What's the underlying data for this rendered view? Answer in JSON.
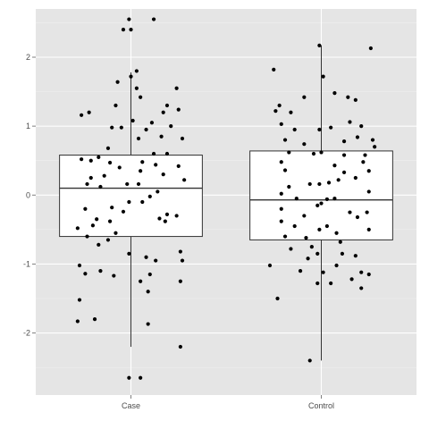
{
  "chart_data": {
    "type": "box",
    "categories": [
      "Case",
      "Control"
    ],
    "y_ticks": [
      -2,
      -1,
      0,
      1,
      2
    ],
    "y_tick_labels": [
      "-2",
      "-1",
      "0",
      "1",
      "2"
    ],
    "ylim": [
      -2.9,
      2.7
    ],
    "grid": true,
    "title": "",
    "xlabel": "",
    "ylabel": "",
    "colors": {
      "panel": "#e5e5e5",
      "grid_major": "#ffffff",
      "grid_minor": "#f2f2f2",
      "box_fill": "#ffffff",
      "box_line": "#333333",
      "point": "#000000",
      "tick_label": "#4d4d4d"
    },
    "series": [
      {
        "category": "Case",
        "box": {
          "q1": -0.6,
          "median": 0.1,
          "q3": 0.58,
          "whisker_low": -2.2,
          "whisker_high": 1.78
        },
        "points": [
          [
            -0.01,
            2.55
          ],
          [
            0.12,
            2.55
          ],
          [
            -0.04,
            2.4
          ],
          [
            0.0,
            2.4
          ],
          [
            0.03,
            1.8
          ],
          [
            0.0,
            1.72
          ],
          [
            -0.07,
            1.64
          ],
          [
            0.03,
            1.55
          ],
          [
            0.24,
            1.55
          ],
          [
            0.05,
            1.42
          ],
          [
            0.19,
            1.3
          ],
          [
            0.25,
            1.24
          ],
          [
            0.17,
            1.2
          ],
          [
            -0.22,
            1.2
          ],
          [
            -0.26,
            1.16
          ],
          [
            -0.08,
            1.3
          ],
          [
            0.01,
            1.08
          ],
          [
            0.11,
            1.05
          ],
          [
            0.21,
            1.0
          ],
          [
            -0.05,
            0.98
          ],
          [
            -0.1,
            0.98
          ],
          [
            0.08,
            0.95
          ],
          [
            0.16,
            0.85
          ],
          [
            0.04,
            0.82
          ],
          [
            0.27,
            0.82
          ],
          [
            -0.12,
            0.68
          ],
          [
            0.12,
            0.6
          ],
          [
            0.19,
            0.6
          ],
          [
            -0.17,
            0.55
          ],
          [
            -0.26,
            0.52
          ],
          [
            -0.21,
            0.5
          ],
          [
            0.25,
            0.42
          ],
          [
            0.06,
            0.48
          ],
          [
            0.13,
            0.44
          ],
          [
            -0.11,
            0.47
          ],
          [
            -0.06,
            0.4
          ],
          [
            -0.14,
            0.28
          ],
          [
            -0.21,
            0.25
          ],
          [
            0.17,
            0.3
          ],
          [
            0.28,
            0.22
          ],
          [
            0.05,
            0.35
          ],
          [
            -0.02,
            0.16
          ],
          [
            0.04,
            0.16
          ],
          [
            -0.23,
            0.16
          ],
          [
            -0.16,
            0.12
          ],
          [
            0.14,
            0.05
          ],
          [
            0.1,
            -0.02
          ],
          [
            -0.01,
            -0.1
          ],
          [
            0.06,
            -0.1
          ],
          [
            -0.1,
            -0.18
          ],
          [
            -0.24,
            -0.2
          ],
          [
            -0.04,
            -0.24
          ],
          [
            0.19,
            -0.28
          ],
          [
            0.24,
            -0.3
          ],
          [
            0.15,
            -0.34
          ],
          [
            -0.18,
            -0.35
          ],
          [
            -0.11,
            -0.38
          ],
          [
            0.18,
            -0.38
          ],
          [
            -0.2,
            -0.44
          ],
          [
            -0.28,
            -0.48
          ],
          [
            -0.23,
            -0.6
          ],
          [
            -0.12,
            -0.65
          ],
          [
            -0.17,
            -0.72
          ],
          [
            -0.08,
            -0.55
          ],
          [
            0.26,
            -0.82
          ],
          [
            -0.01,
            -0.85
          ],
          [
            0.08,
            -0.9
          ],
          [
            0.13,
            -0.95
          ],
          [
            -0.27,
            -1.02
          ],
          [
            0.27,
            -0.95
          ],
          [
            -0.16,
            -1.1
          ],
          [
            0.1,
            -1.15
          ],
          [
            -0.24,
            -1.14
          ],
          [
            -0.09,
            -1.17
          ],
          [
            0.26,
            -1.25
          ],
          [
            0.05,
            -1.25
          ],
          [
            0.09,
            -1.4
          ],
          [
            -0.27,
            -1.52
          ],
          [
            -0.28,
            -1.83
          ],
          [
            -0.19,
            -1.8
          ],
          [
            0.09,
            -1.87
          ],
          [
            0.26,
            -2.2
          ],
          [
            0.05,
            -2.65
          ],
          [
            -0.01,
            -2.65
          ]
        ]
      },
      {
        "category": "Control",
        "box": {
          "q1": -0.65,
          "median": -0.07,
          "q3": 0.64,
          "whisker_low": -2.4,
          "whisker_high": 2.17
        },
        "points": [
          [
            -0.01,
            2.17
          ],
          [
            0.26,
            2.13
          ],
          [
            -0.25,
            1.82
          ],
          [
            0.01,
            1.72
          ],
          [
            0.07,
            1.48
          ],
          [
            0.14,
            1.42
          ],
          [
            -0.09,
            1.42
          ],
          [
            0.18,
            1.38
          ],
          [
            -0.22,
            1.3
          ],
          [
            -0.16,
            1.2
          ],
          [
            -0.24,
            1.22
          ],
          [
            0.15,
            1.06
          ],
          [
            -0.21,
            1.03
          ],
          [
            0.05,
            0.98
          ],
          [
            -0.01,
            0.95
          ],
          [
            -0.14,
            0.95
          ],
          [
            0.21,
            1.0
          ],
          [
            0.19,
            0.84
          ],
          [
            0.27,
            0.8
          ],
          [
            -0.19,
            0.8
          ],
          [
            0.12,
            0.78
          ],
          [
            -0.09,
            0.74
          ],
          [
            0.28,
            0.7
          ],
          [
            0.23,
            0.58
          ],
          [
            0.12,
            0.58
          ],
          [
            -0.17,
            0.62
          ],
          [
            0.0,
            0.62
          ],
          [
            -0.04,
            0.6
          ],
          [
            -0.21,
            0.48
          ],
          [
            0.22,
            0.48
          ],
          [
            0.07,
            0.43
          ],
          [
            -0.19,
            0.36
          ],
          [
            0.25,
            0.35
          ],
          [
            0.12,
            0.33
          ],
          [
            0.18,
            0.25
          ],
          [
            0.09,
            0.22
          ],
          [
            -0.06,
            0.16
          ],
          [
            0.04,
            0.18
          ],
          [
            -0.01,
            0.16
          ],
          [
            -0.17,
            0.12
          ],
          [
            0.25,
            0.05
          ],
          [
            -0.21,
            0.02
          ],
          [
            -0.13,
            -0.05
          ],
          [
            0.07,
            -0.05
          ],
          [
            0.03,
            -0.06
          ],
          [
            0.0,
            -0.12
          ],
          [
            -0.02,
            -0.15
          ],
          [
            -0.21,
            -0.2
          ],
          [
            0.24,
            -0.25
          ],
          [
            0.15,
            -0.25
          ],
          [
            -0.09,
            -0.3
          ],
          [
            0.19,
            -0.32
          ],
          [
            -0.21,
            -0.38
          ],
          [
            -0.14,
            -0.45
          ],
          [
            0.03,
            -0.45
          ],
          [
            0.25,
            -0.5
          ],
          [
            -0.01,
            -0.5
          ],
          [
            0.08,
            -0.55
          ],
          [
            -0.19,
            -0.6
          ],
          [
            -0.08,
            -0.62
          ],
          [
            0.1,
            -0.68
          ],
          [
            -0.05,
            -0.75
          ],
          [
            -0.16,
            -0.78
          ],
          [
            -0.02,
            -0.85
          ],
          [
            0.11,
            -0.85
          ],
          [
            0.18,
            -0.88
          ],
          [
            -0.07,
            -0.92
          ],
          [
            -0.27,
            -1.02
          ],
          [
            0.08,
            -1.02
          ],
          [
            -0.11,
            -1.1
          ],
          [
            0.01,
            -1.12
          ],
          [
            0.21,
            -1.12
          ],
          [
            0.25,
            -1.15
          ],
          [
            0.16,
            -1.22
          ],
          [
            -0.02,
            -1.28
          ],
          [
            0.05,
            -1.28
          ],
          [
            0.21,
            -1.35
          ],
          [
            -0.23,
            -1.5
          ],
          [
            -0.06,
            -2.4
          ]
        ]
      }
    ]
  }
}
